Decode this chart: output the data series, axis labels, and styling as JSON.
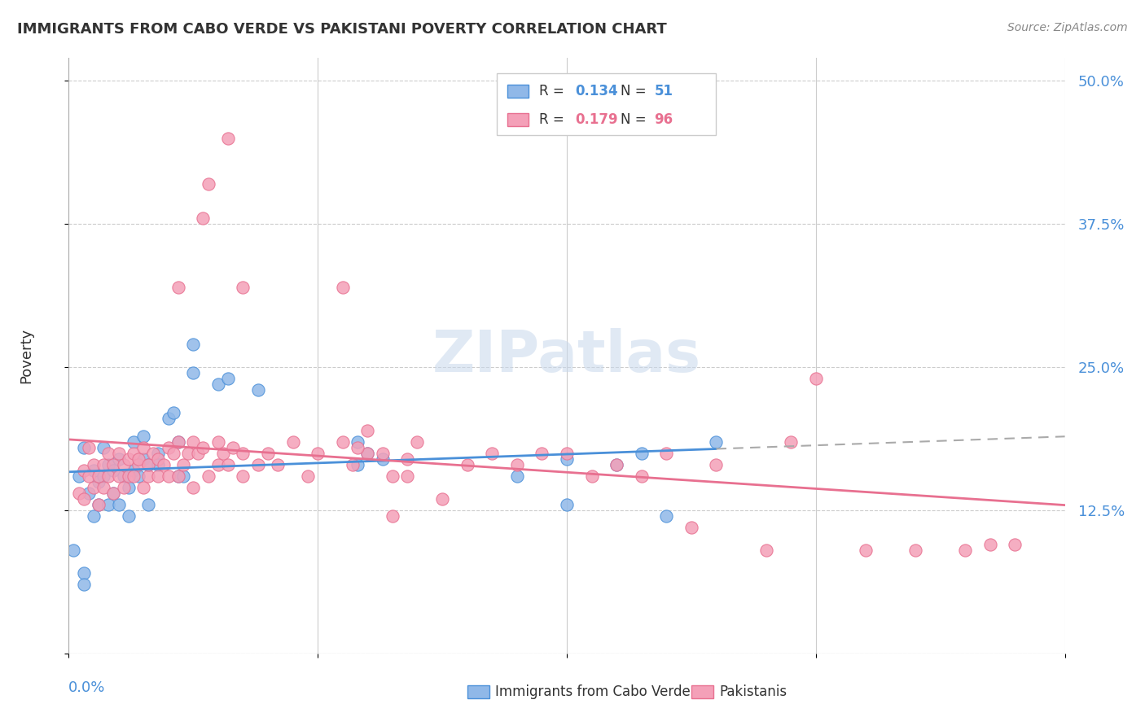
{
  "title": "IMMIGRANTS FROM CABO VERDE VS PAKISTANI POVERTY CORRELATION CHART",
  "source": "Source: ZipAtlas.com",
  "ylabel": "Poverty",
  "yticks": [
    0.0,
    0.125,
    0.25,
    0.375,
    0.5
  ],
  "ytick_labels": [
    "",
    "12.5%",
    "25.0%",
    "37.5%",
    "50.0%"
  ],
  "xlim": [
    0.0,
    0.2
  ],
  "ylim": [
    0.0,
    0.52
  ],
  "r_cabo": 0.134,
  "n_cabo": 51,
  "r_pak": 0.179,
  "n_pak": 96,
  "color_cabo": "#90b8e8",
  "color_pak": "#f4a0b8",
  "color_cabo_line": "#4a90d9",
  "color_pak_line": "#e87090",
  "watermark": "ZIPatlas",
  "cabo_verde_points": [
    [
      0.002,
      0.155
    ],
    [
      0.003,
      0.18
    ],
    [
      0.004,
      0.14
    ],
    [
      0.005,
      0.12
    ],
    [
      0.005,
      0.16
    ],
    [
      0.006,
      0.13
    ],
    [
      0.006,
      0.15
    ],
    [
      0.007,
      0.155
    ],
    [
      0.007,
      0.18
    ],
    [
      0.008,
      0.165
    ],
    [
      0.008,
      0.13
    ],
    [
      0.009,
      0.14
    ],
    [
      0.009,
      0.16
    ],
    [
      0.01,
      0.17
    ],
    [
      0.01,
      0.13
    ],
    [
      0.011,
      0.155
    ],
    [
      0.012,
      0.145
    ],
    [
      0.012,
      0.12
    ],
    [
      0.013,
      0.16
    ],
    [
      0.013,
      0.185
    ],
    [
      0.014,
      0.155
    ],
    [
      0.015,
      0.17
    ],
    [
      0.015,
      0.19
    ],
    [
      0.016,
      0.165
    ],
    [
      0.016,
      0.13
    ],
    [
      0.018,
      0.175
    ],
    [
      0.018,
      0.165
    ],
    [
      0.02,
      0.205
    ],
    [
      0.021,
      0.21
    ],
    [
      0.022,
      0.155
    ],
    [
      0.022,
      0.185
    ],
    [
      0.023,
      0.155
    ],
    [
      0.025,
      0.245
    ],
    [
      0.025,
      0.27
    ],
    [
      0.03,
      0.235
    ],
    [
      0.032,
      0.24
    ],
    [
      0.038,
      0.23
    ],
    [
      0.058,
      0.165
    ],
    [
      0.058,
      0.185
    ],
    [
      0.06,
      0.175
    ],
    [
      0.063,
      0.17
    ],
    [
      0.09,
      0.155
    ],
    [
      0.1,
      0.17
    ],
    [
      0.1,
      0.13
    ],
    [
      0.11,
      0.165
    ],
    [
      0.115,
      0.175
    ],
    [
      0.12,
      0.12
    ],
    [
      0.13,
      0.185
    ],
    [
      0.001,
      0.09
    ],
    [
      0.003,
      0.07
    ],
    [
      0.003,
      0.06
    ]
  ],
  "pakistani_points": [
    [
      0.002,
      0.14
    ],
    [
      0.003,
      0.16
    ],
    [
      0.003,
      0.135
    ],
    [
      0.004,
      0.155
    ],
    [
      0.004,
      0.18
    ],
    [
      0.005,
      0.145
    ],
    [
      0.005,
      0.165
    ],
    [
      0.006,
      0.13
    ],
    [
      0.006,
      0.155
    ],
    [
      0.007,
      0.145
    ],
    [
      0.007,
      0.165
    ],
    [
      0.008,
      0.155
    ],
    [
      0.008,
      0.175
    ],
    [
      0.009,
      0.14
    ],
    [
      0.009,
      0.165
    ],
    [
      0.01,
      0.155
    ],
    [
      0.01,
      0.175
    ],
    [
      0.011,
      0.145
    ],
    [
      0.011,
      0.165
    ],
    [
      0.012,
      0.155
    ],
    [
      0.012,
      0.17
    ],
    [
      0.013,
      0.155
    ],
    [
      0.013,
      0.175
    ],
    [
      0.014,
      0.165
    ],
    [
      0.014,
      0.17
    ],
    [
      0.015,
      0.145
    ],
    [
      0.015,
      0.18
    ],
    [
      0.016,
      0.155
    ],
    [
      0.016,
      0.165
    ],
    [
      0.017,
      0.175
    ],
    [
      0.018,
      0.155
    ],
    [
      0.018,
      0.17
    ],
    [
      0.019,
      0.165
    ],
    [
      0.02,
      0.18
    ],
    [
      0.02,
      0.155
    ],
    [
      0.021,
      0.175
    ],
    [
      0.022,
      0.155
    ],
    [
      0.022,
      0.185
    ],
    [
      0.023,
      0.165
    ],
    [
      0.024,
      0.175
    ],
    [
      0.025,
      0.145
    ],
    [
      0.025,
      0.185
    ],
    [
      0.026,
      0.175
    ],
    [
      0.027,
      0.18
    ],
    [
      0.028,
      0.155
    ],
    [
      0.03,
      0.165
    ],
    [
      0.03,
      0.185
    ],
    [
      0.031,
      0.175
    ],
    [
      0.032,
      0.165
    ],
    [
      0.033,
      0.18
    ],
    [
      0.035,
      0.155
    ],
    [
      0.035,
      0.175
    ],
    [
      0.038,
      0.165
    ],
    [
      0.04,
      0.175
    ],
    [
      0.042,
      0.165
    ],
    [
      0.045,
      0.185
    ],
    [
      0.048,
      0.155
    ],
    [
      0.05,
      0.175
    ],
    [
      0.055,
      0.185
    ],
    [
      0.057,
      0.165
    ],
    [
      0.06,
      0.175
    ],
    [
      0.065,
      0.155
    ],
    [
      0.068,
      0.17
    ],
    [
      0.028,
      0.41
    ],
    [
      0.032,
      0.45
    ],
    [
      0.027,
      0.38
    ],
    [
      0.035,
      0.32
    ],
    [
      0.022,
      0.32
    ],
    [
      0.055,
      0.32
    ],
    [
      0.058,
      0.18
    ],
    [
      0.06,
      0.195
    ],
    [
      0.063,
      0.175
    ],
    [
      0.065,
      0.12
    ],
    [
      0.068,
      0.155
    ],
    [
      0.07,
      0.185
    ],
    [
      0.075,
      0.135
    ],
    [
      0.08,
      0.165
    ],
    [
      0.085,
      0.175
    ],
    [
      0.09,
      0.165
    ],
    [
      0.095,
      0.175
    ],
    [
      0.1,
      0.175
    ],
    [
      0.105,
      0.155
    ],
    [
      0.11,
      0.165
    ],
    [
      0.115,
      0.155
    ],
    [
      0.12,
      0.175
    ],
    [
      0.125,
      0.11
    ],
    [
      0.13,
      0.165
    ],
    [
      0.14,
      0.09
    ],
    [
      0.145,
      0.185
    ],
    [
      0.15,
      0.24
    ],
    [
      0.16,
      0.09
    ],
    [
      0.17,
      0.09
    ],
    [
      0.18,
      0.09
    ],
    [
      0.185,
      0.095
    ],
    [
      0.19,
      0.095
    ]
  ]
}
